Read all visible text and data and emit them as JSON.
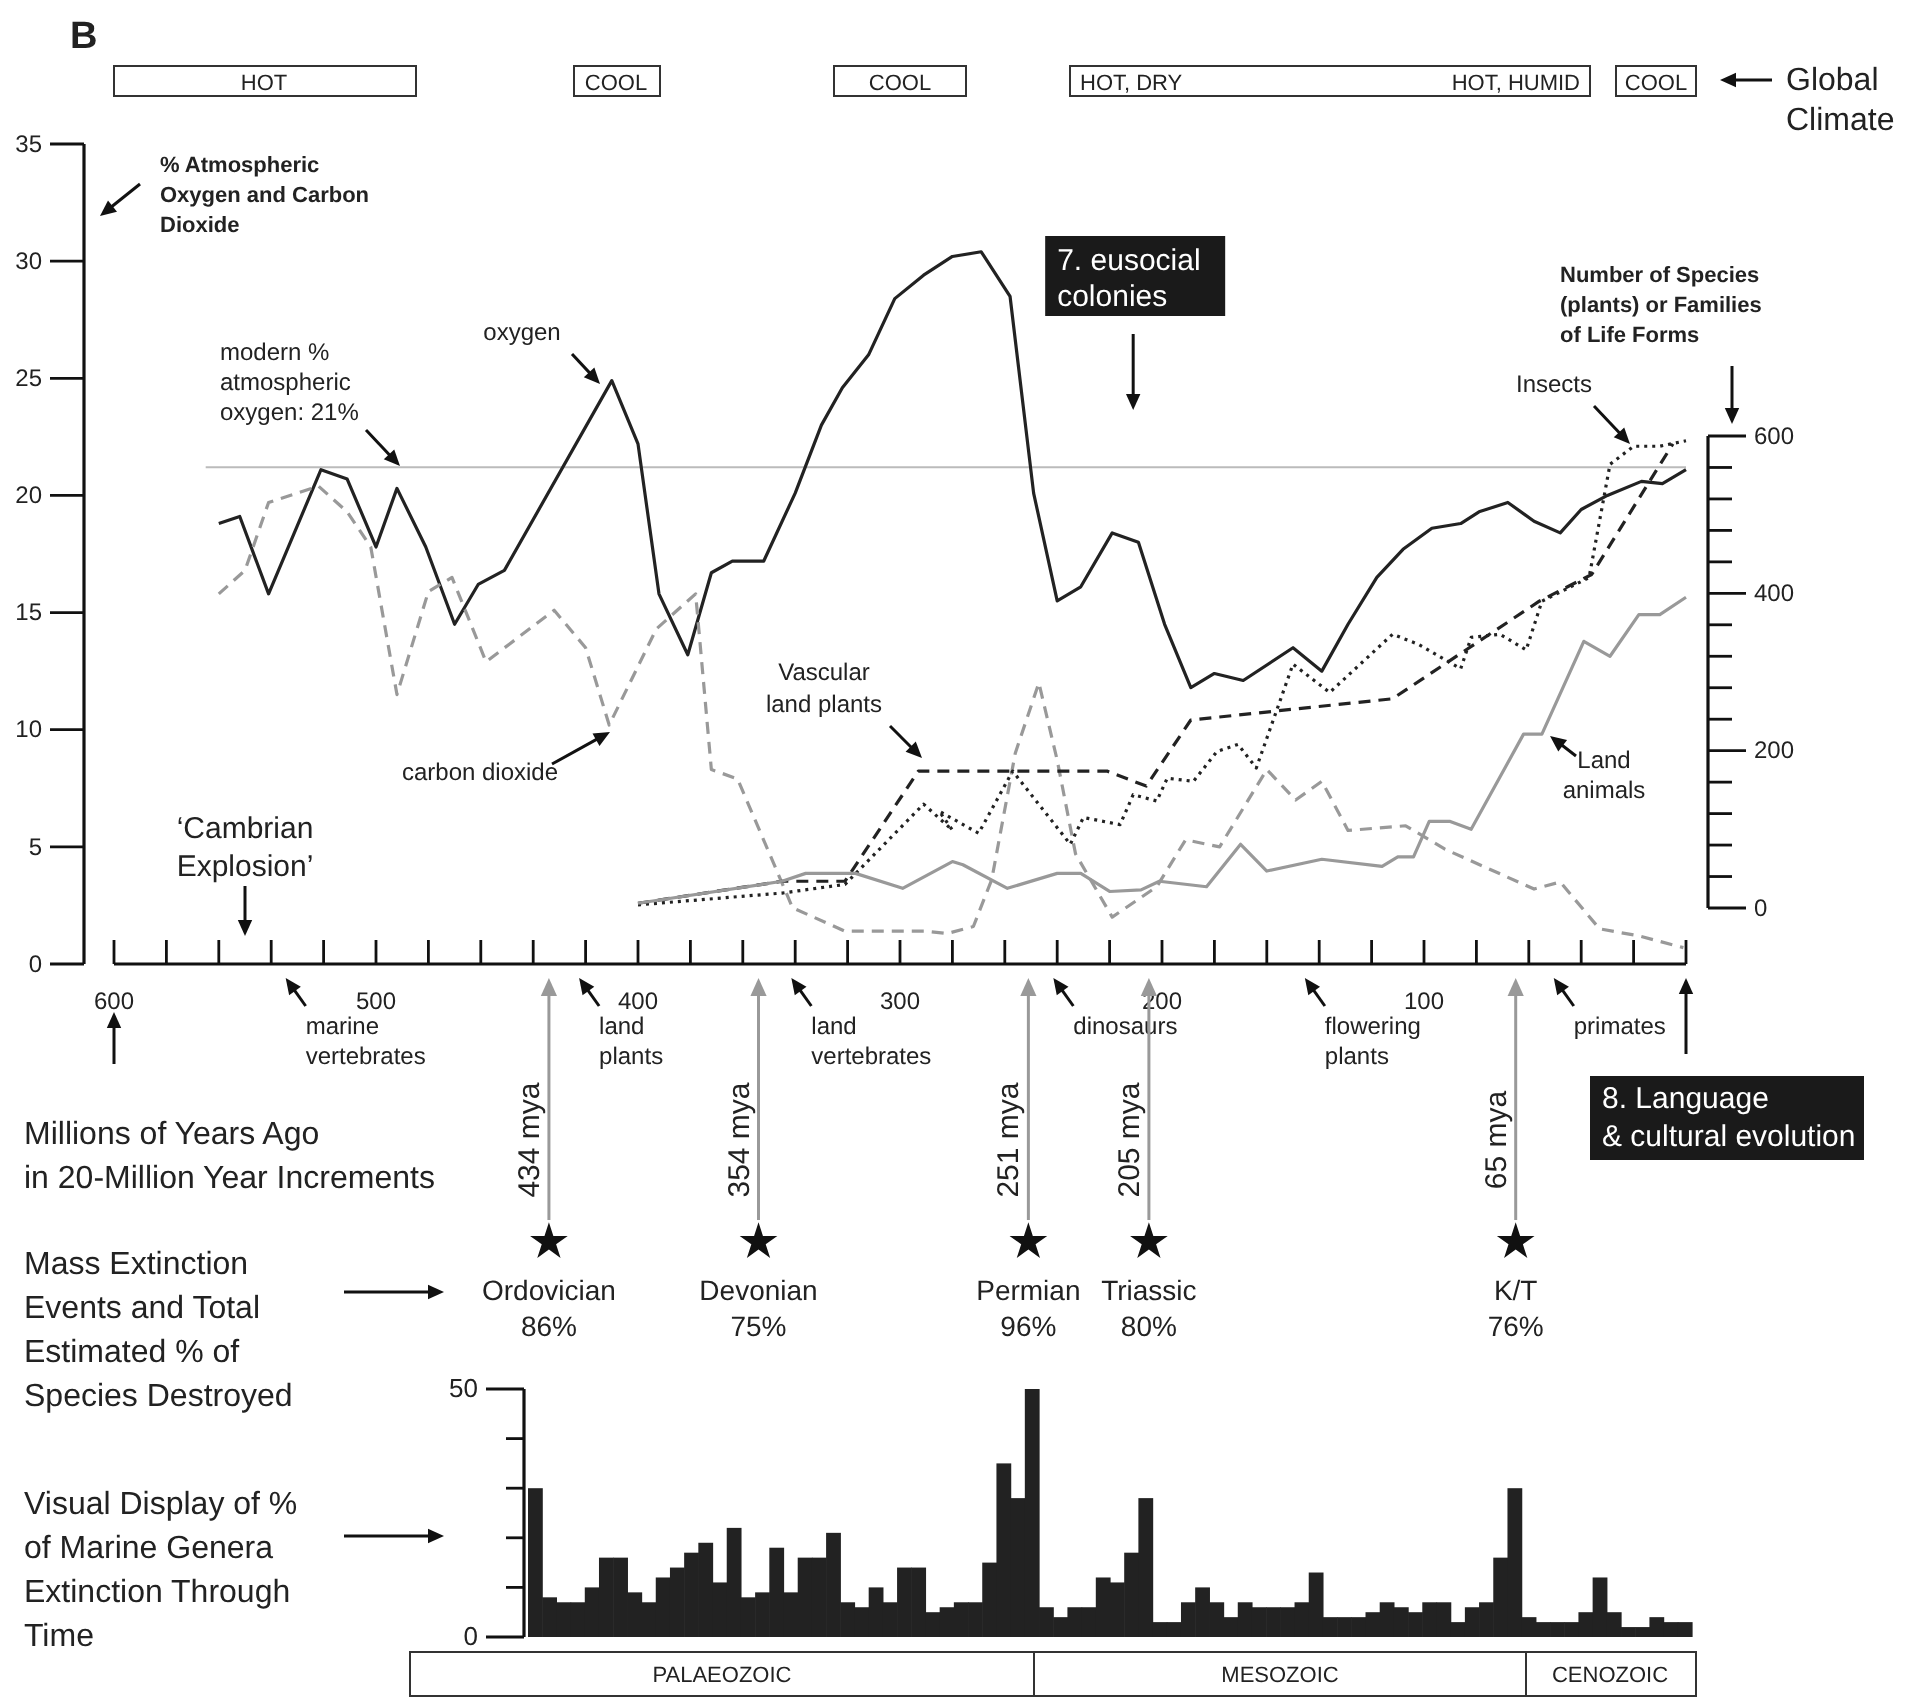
{
  "chart_data": [
    {
      "type": "line",
      "title": "B",
      "xlabel": "Millions of Years Ago in 20-Million Year Increments",
      "ylabel": "% Atmospheric Oxygen and Carbon Dioxide",
      "y2label": "Number of Species (plants) or Families of Life Forms",
      "xlim": [
        600,
        0
      ],
      "xticks": [
        600,
        {
          "value": 580,
          "label": null
        },
        {
          "value": 560,
          "label": null
        },
        {
          "value": 540,
          "label": null
        },
        {
          "value": 520,
          "label": null
        },
        500,
        {
          "value": 480,
          "label": null
        },
        {
          "value": 460,
          "label": null
        },
        {
          "value": 440,
          "label": null
        },
        {
          "value": 420,
          "label": null
        },
        400,
        {
          "value": 380,
          "label": null
        },
        {
          "value": 360,
          "label": null
        },
        {
          "value": 340,
          "label": null
        },
        {
          "value": 320,
          "label": null
        },
        300,
        {
          "value": 280,
          "label": null
        },
        {
          "value": 260,
          "label": null
        },
        {
          "value": 240,
          "label": null
        },
        {
          "value": 220,
          "label": null
        },
        200,
        {
          "value": 180,
          "label": null
        },
        {
          "value": 160,
          "label": null
        },
        {
          "value": 140,
          "label": null
        },
        {
          "value": 120,
          "label": null
        },
        100,
        {
          "value": 80,
          "label": null
        },
        {
          "value": 60,
          "label": null
        },
        {
          "value": 40,
          "label": null
        },
        {
          "value": 20,
          "label": null
        },
        {
          "value": 0,
          "label": null
        }
      ],
      "ylim": [
        0,
        35
      ],
      "yticks": [
        0,
        5,
        10,
        15,
        20,
        25,
        30,
        35
      ],
      "y2lim": [
        0,
        600
      ],
      "y2ticks": [
        0,
        {
          "value": 40,
          "label": null
        },
        {
          "value": 80,
          "label": null
        },
        {
          "value": 120,
          "label": null
        },
        {
          "value": 160,
          "label": null
        },
        200,
        {
          "value": 240,
          "label": null
        },
        {
          "value": 280,
          "label": null
        },
        {
          "value": 320,
          "label": null
        },
        {
          "value": 360,
          "label": null
        },
        400,
        {
          "value": 440,
          "label": null
        },
        {
          "value": 480,
          "label": null
        },
        {
          "value": 520,
          "label": null
        },
        {
          "value": 560,
          "label": null
        },
        600
      ],
      "series": [
        {
          "name": "oxygen",
          "color": "#222222",
          "line_style": "solid",
          "x": [
            560,
            552,
            541,
            521,
            511,
            500,
            492,
            481,
            470,
            461,
            451,
            410,
            400,
            392,
            381,
            372,
            364,
            352,
            340,
            330,
            322,
            312,
            302,
            291,
            280,
            269,
            258,
            249,
            240,
            231,
            219,
            209,
            199,
            189,
            180,
            169,
            150,
            139,
            129,
            118,
            108,
            97,
            86,
            79,
            68,
            58,
            48,
            40,
            30,
            17,
            9,
            0
          ],
          "values": [
            18.8,
            19.1,
            15.8,
            21.1,
            20.7,
            17.8,
            20.3,
            17.8,
            14.5,
            16.2,
            16.8,
            24.9,
            22.2,
            15.8,
            13.2,
            16.7,
            17.2,
            17.2,
            20.1,
            23.0,
            24.6,
            26.0,
            28.4,
            29.4,
            30.2,
            30.4,
            28.5,
            20.1,
            15.5,
            16.1,
            18.4,
            18.0,
            14.5,
            11.8,
            12.4,
            12.1,
            13.5,
            12.5,
            14.5,
            16.5,
            17.7,
            18.6,
            18.8,
            19.3,
            19.7,
            18.9,
            18.4,
            19.4,
            20.0,
            20.6,
            20.5,
            21.1
          ]
        },
        {
          "name": "carbon dioxide",
          "color": "#999999",
          "line_style": "dashed",
          "x": [
            560,
            550,
            541,
            522,
            511,
            502,
            492,
            480,
            471,
            458,
            432,
            420,
            411,
            393,
            378,
            372,
            362,
            341,
            321,
            290,
            282,
            272,
            265,
            256,
            247,
            240,
            233,
            219,
            202,
            191,
            178,
            160,
            149,
            139,
            129,
            107,
            92,
            58,
            48,
            33,
            18,
            1
          ],
          "values": [
            15.8,
            16.8,
            19.7,
            20.4,
            19.3,
            17.8,
            11.5,
            15.9,
            16.5,
            12.9,
            15.1,
            13.5,
            10.2,
            14.3,
            15.8,
            8.3,
            7.9,
            2.4,
            1.4,
            1.4,
            1.3,
            1.6,
            3.6,
            9.0,
            12.0,
            8.7,
            4.7,
            2.0,
            3.3,
            5.3,
            5.0,
            8.3,
            7.0,
            7.8,
            5.7,
            5.9,
            4.9,
            3.2,
            3.5,
            1.5,
            1.2,
            0.7
          ]
        },
        {
          "name": "Vascular land plants",
          "color": "#222222",
          "line_style": "dashed",
          "axis": "y2",
          "x": [
            400,
            345,
            321,
            293,
            280,
            221,
            206,
            189,
            112,
            56,
            36,
            5
          ],
          "values": [
            6,
            34,
            34,
            174,
            174,
            174,
            155,
            239,
            266,
            390,
            424,
            590
          ]
        },
        {
          "name": "Insects",
          "color": "#222222",
          "line_style": "dotted",
          "axis": "y2",
          "x": [
            400,
            345,
            321,
            291,
            280,
            285,
            270,
            257,
            235,
            230,
            216,
            211,
            202,
            198,
            188,
            179,
            171,
            164,
            150,
            136,
            112,
            102,
            86,
            82,
            71,
            61,
            55,
            37,
            29,
            20,
            10,
            0
          ],
          "values": [
            4,
            19,
            30,
            132,
            99,
            123,
            95,
            174,
            81,
            115,
            106,
            144,
            136,
            165,
            161,
            199,
            208,
            178,
            310,
            274,
            348,
            335,
            304,
            344,
            348,
            328,
            390,
            420,
            564,
            587,
            587,
            594
          ]
        },
        {
          "name": "Land animals",
          "color": "#999999",
          "line_style": "solid",
          "axis": "y2",
          "x": [
            400,
            345,
            336,
            317,
            299,
            280,
            276,
            259,
            240,
            231,
            220,
            208,
            201,
            183,
            170,
            160,
            139,
            116,
            110,
            104,
            98,
            90,
            82,
            62,
            55,
            39,
            29,
            18,
            10,
            0
          ],
          "values": [
            6,
            34,
            44,
            44,
            25,
            59,
            55,
            25,
            44,
            44,
            21,
            23,
            34,
            27,
            81,
            47,
            62,
            53,
            65,
            65,
            110,
            110,
            100,
            221,
            221,
            339,
            320,
            373,
            373,
            395
          ]
        }
      ],
      "ref_lines": [
        {
          "axis": "y",
          "value": 21.2,
          "label": "modern % atmospheric oxygen: 21%",
          "color": "#bbbbbb"
        }
      ],
      "annotations": [
        "HOT",
        "COOL",
        "COOL",
        "HOT, DRY",
        "HOT, HUMID",
        "COOL",
        "Global Climate",
        "7. eusocial colonies",
        "‘Cambrian Explosion’",
        "marine vertebrates",
        "land plants",
        "land vertebrates",
        "dinosaurs",
        "flowering plants",
        "primates",
        "8. Language & cultural evolution",
        "434 mya",
        "354 mya",
        "251 mya",
        "205 mya",
        "65 mya",
        "Ordovician 86%",
        "Devonian 75%",
        "Permian 96%",
        "Triassic 80%",
        "K/T 76%",
        "Mass Extinction Events and Total Estimated % of Species Destroyed"
      ]
    },
    {
      "type": "bar",
      "ylabel": "Visual Display of % of Marine Genera Extinction Through Time",
      "color": "#222222",
      "categories": [
        null,
        null,
        null,
        null,
        null,
        null,
        null,
        null,
        null,
        null,
        null,
        null,
        null,
        null,
        null,
        null,
        null,
        null,
        null,
        null,
        null,
        null,
        null,
        null,
        null,
        null,
        null,
        null,
        null,
        null,
        null,
        null,
        null,
        null,
        null,
        null,
        null,
        null,
        null,
        null,
        null,
        null,
        null,
        null,
        null,
        null,
        null,
        null,
        null,
        null,
        null,
        null,
        null,
        null,
        null,
        null,
        null,
        null,
        null,
        null,
        null,
        null,
        null,
        null,
        null,
        null,
        null,
        null,
        null,
        null,
        null,
        null,
        null,
        null,
        null,
        null,
        null,
        null,
        null,
        null,
        null,
        null
      ],
      "values": [
        30,
        8,
        7,
        7,
        10,
        16,
        16,
        9,
        7,
        12,
        14,
        17,
        19,
        11,
        22,
        8,
        9,
        18,
        9,
        16,
        16,
        21,
        7,
        6,
        10,
        7,
        14,
        14,
        5,
        6,
        7,
        7,
        15,
        35,
        28,
        50,
        6,
        4,
        6,
        6,
        12,
        11,
        17,
        28,
        3,
        3,
        7,
        10,
        7,
        4,
        7,
        6,
        6,
        6,
        7,
        13,
        4,
        4,
        4,
        5,
        7,
        6,
        5,
        7,
        7,
        3,
        6,
        7,
        16,
        30,
        4,
        3,
        3,
        3,
        5,
        12,
        5,
        2,
        2,
        4,
        3,
        3
      ],
      "ylim": [
        0,
        50
      ],
      "yticks": [
        0,
        {
          "value": 10,
          "label": null
        },
        {
          "value": 20,
          "label": null
        },
        {
          "value": 30,
          "label": null
        },
        {
          "value": 40,
          "label": null
        },
        50
      ],
      "annotations": [
        "PALAEOZOIC",
        "MESOZOIC",
        "CENOZOIC"
      ]
    }
  ]
}
